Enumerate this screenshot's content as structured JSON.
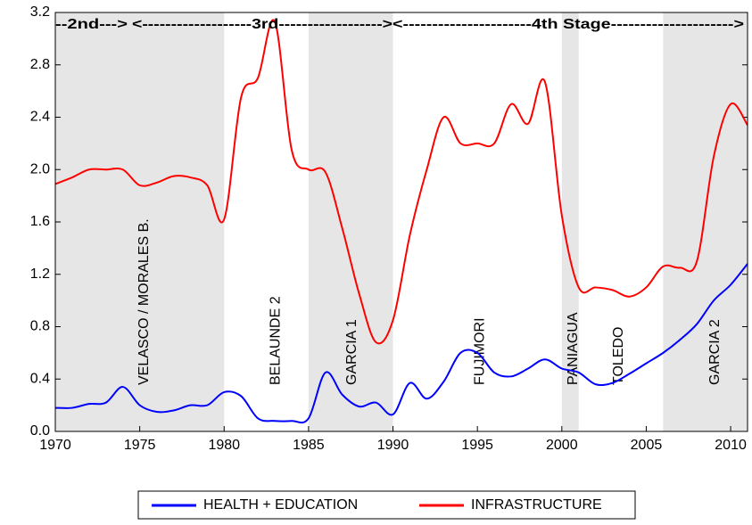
{
  "chart_data": {
    "type": "line",
    "x": [
      1970,
      1971,
      1972,
      1973,
      1974,
      1975,
      1976,
      1977,
      1978,
      1979,
      1980,
      1981,
      1982,
      1983,
      1984,
      1985,
      1986,
      1987,
      1988,
      1989,
      1990,
      1991,
      1992,
      1993,
      1994,
      1995,
      1996,
      1997,
      1998,
      1999,
      2000,
      2001,
      2002,
      2003,
      2004,
      2005,
      2006,
      2007,
      2008,
      2009,
      2010,
      2011
    ],
    "series": [
      {
        "name": "HEALTH + EDUCATION",
        "color": "#0000ff",
        "values": [
          0.18,
          0.18,
          0.21,
          0.22,
          0.34,
          0.2,
          0.15,
          0.16,
          0.2,
          0.2,
          0.3,
          0.27,
          0.1,
          0.08,
          0.08,
          0.1,
          0.45,
          0.28,
          0.19,
          0.22,
          0.13,
          0.37,
          0.25,
          0.38,
          0.6,
          0.6,
          0.45,
          0.42,
          0.48,
          0.55,
          0.48,
          0.45,
          0.36,
          0.37,
          0.44,
          0.52,
          0.6,
          0.7,
          0.82,
          1.0,
          1.12,
          1.28
        ]
      },
      {
        "name": "INFRASTRUCTURE",
        "color": "#ff0000",
        "values": [
          1.89,
          1.94,
          2.0,
          2.0,
          2.0,
          1.88,
          1.9,
          1.95,
          1.94,
          1.88,
          1.62,
          2.55,
          2.7,
          3.13,
          2.15,
          2.0,
          1.98,
          1.55,
          1.05,
          0.68,
          0.85,
          1.5,
          2.0,
          2.4,
          2.2,
          2.2,
          2.2,
          2.5,
          2.35,
          2.67,
          1.65,
          1.1,
          1.1,
          1.08,
          1.03,
          1.1,
          1.26,
          1.25,
          1.3,
          2.1,
          2.5,
          2.34
        ]
      }
    ],
    "xlim": [
      1970,
      2011
    ],
    "xticks": [
      1970,
      1975,
      1980,
      1985,
      1990,
      1995,
      2000,
      2005,
      2010
    ],
    "ylim": [
      0,
      3.2
    ],
    "yticks": [
      {
        "value": 0,
        "label": "0.0"
      },
      0.4,
      0.8,
      1.2,
      1.6,
      {
        "value": 2,
        "label": "2.0"
      },
      2.4,
      2.8,
      3.2
    ],
    "shaded": [
      [
        1970,
        1980
      ],
      [
        1985,
        1990
      ],
      [
        2000,
        2001
      ],
      [
        2006,
        2011
      ]
    ],
    "region_labels": [
      {
        "label": "VELASCO / MORALES B.",
        "x": 1975.5
      },
      {
        "label": "BELAUNDE 2",
        "x": 1983.3
      },
      {
        "label": "GARCIA 1",
        "x": 1987.8
      },
      {
        "label": "FUJIMORI",
        "x": 1995.4
      },
      {
        "label": "PANIAGUA",
        "x": 2000.9
      },
      {
        "label": "TOLEDO",
        "x": 2003.6
      },
      {
        "label": "GARCIA 2",
        "x": 2009.3
      }
    ],
    "stages": [
      "--2nd--->",
      "<-------------------3rd------------------>",
      "<----------------------4th Stage--------------------->"
    ]
  }
}
